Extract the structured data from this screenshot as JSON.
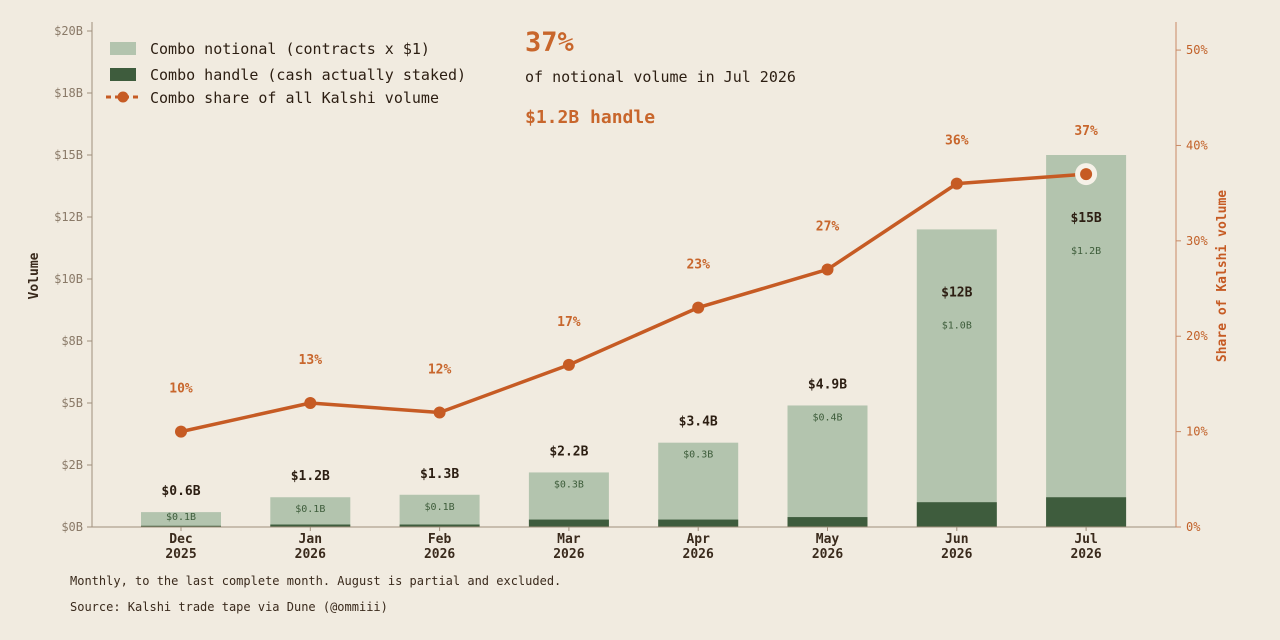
{
  "chart_data": {
    "type": "bar",
    "categories": [
      "Dec 2025",
      "Jan 2026",
      "Feb 2026",
      "Mar 2026",
      "Apr 2026",
      "May 2026",
      "Jun 2026",
      "Jul 2026"
    ],
    "category_lines": [
      [
        "Dec",
        "2025"
      ],
      [
        "Jan",
        "2026"
      ],
      [
        "Feb",
        "2026"
      ],
      [
        "Mar",
        "2026"
      ],
      [
        "Apr",
        "2026"
      ],
      [
        "May",
        "2026"
      ],
      [
        "Jun",
        "2026"
      ],
      [
        "Jul",
        "2026"
      ]
    ],
    "series": [
      {
        "name": "Combo notional (contracts x $1)",
        "values": [
          0.6,
          1.2,
          1.3,
          2.2,
          3.4,
          4.9,
          12,
          15
        ],
        "labels": [
          "$0.6B",
          "$1.2B",
          "$1.3B",
          "$2.2B",
          "$3.4B",
          "$4.9B",
          "$12B",
          "$15B"
        ],
        "color": "#b3c4ae"
      },
      {
        "name": "Combo handle (cash actually staked)",
        "values": [
          0.05,
          0.1,
          0.1,
          0.3,
          0.3,
          0.4,
          1.0,
          1.2
        ],
        "labels": [
          "$0.1B",
          "$0.1B",
          "$0.1B",
          "$0.3B",
          "$0.3B",
          "$0.4B",
          "$1.0B",
          "$1.2B"
        ],
        "color": "#3e5c3d"
      },
      {
        "name": "Combo share of all Kalshi volume",
        "values": [
          10,
          13,
          12,
          17,
          23,
          27,
          36,
          37
        ],
        "labels": [
          "10%",
          "13%",
          "12%",
          "17%",
          "23%",
          "27%",
          "36%",
          "37%"
        ],
        "color": "#c65b24",
        "axis": "right"
      }
    ],
    "ylabel": "Volume",
    "ylim": [
      0,
      20
    ],
    "yticks": [
      0,
      2.5,
      5,
      7.5,
      10,
      12.5,
      15,
      17.5,
      20
    ],
    "ytick_labels": [
      "$0B",
      "$2B",
      "$5B",
      "$8B",
      "$10B",
      "$12B",
      "$15B",
      "$18B",
      "$20B"
    ],
    "y2label": "Share of Kalshi volume",
    "y2lim": [
      0,
      52
    ],
    "y2ticks": [
      0,
      10,
      20,
      30,
      40,
      50
    ],
    "y2tick_labels": [
      "0%",
      "10%",
      "20%",
      "30%",
      "40%",
      "50%"
    ],
    "legend_position": "top-left",
    "grid": false
  },
  "callout": {
    "headline": "37%",
    "subtitle": "of notional volume in Jul 2026",
    "handle": "$1.2B handle"
  },
  "footnotes": {
    "method": "Monthly, to the last complete month. August is partial and excluded.",
    "source": "Source: Kalshi trade tape via Dune (@ommiii)"
  },
  "colors": {
    "background": "#f1ebe0",
    "notional": "#b3c4ae",
    "handle": "#3e5c3d",
    "share": "#c65b24",
    "axis": "#8a7a68"
  }
}
